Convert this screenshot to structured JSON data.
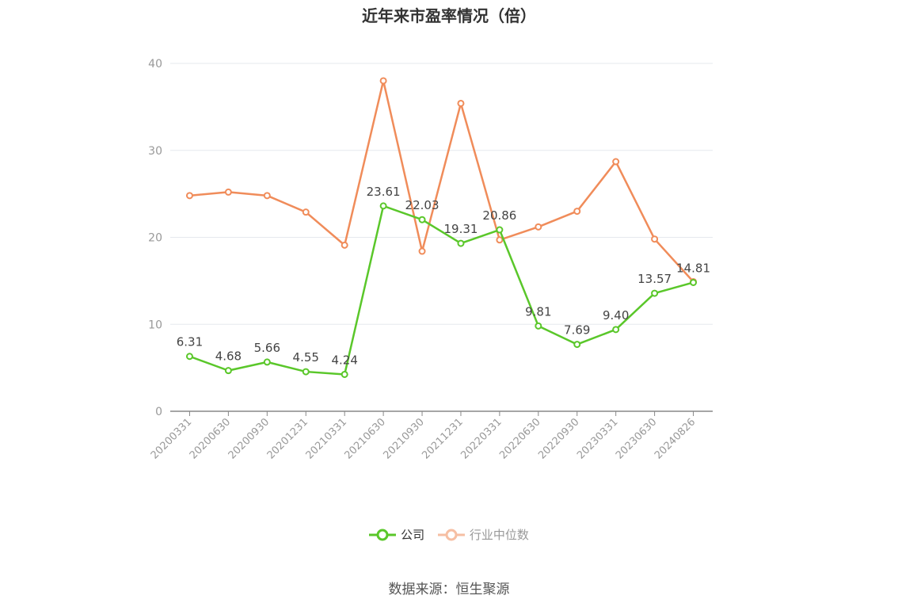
{
  "chart_data": {
    "type": "line",
    "title": "近年来市盈率情况（倍）",
    "categories": [
      "20200331",
      "20200630",
      "20200930",
      "20201231",
      "20210331",
      "20210630",
      "20210930",
      "20211231",
      "20220331",
      "20220630",
      "20220930",
      "20230331",
      "20230630",
      "20240826"
    ],
    "series": [
      {
        "name": "公司",
        "color": "#5ac72a",
        "values": [
          6.31,
          4.68,
          5.66,
          4.55,
          4.24,
          23.61,
          22.03,
          19.31,
          20.86,
          9.81,
          7.69,
          9.4,
          13.57,
          14.81
        ],
        "labels": [
          "6.31",
          "4.68",
          "5.66",
          "4.55",
          "4.24",
          "23.61",
          "22.03",
          "19.31",
          "20.86",
          "9.81",
          "7.69",
          "9.40",
          "13.57",
          "14.81"
        ]
      },
      {
        "name": "行业中位数",
        "color": "#f08c5a",
        "values": [
          24.8,
          25.2,
          24.8,
          22.9,
          19.1,
          38.0,
          18.4,
          35.4,
          19.7,
          21.2,
          23.0,
          28.7,
          19.8,
          14.9
        ]
      }
    ],
    "ylim": [
      0,
      40
    ],
    "yticks": [
      0,
      10,
      20,
      30,
      40
    ],
    "grid": true,
    "legend_position": "bottom"
  },
  "source": "数据来源：恒生聚源"
}
